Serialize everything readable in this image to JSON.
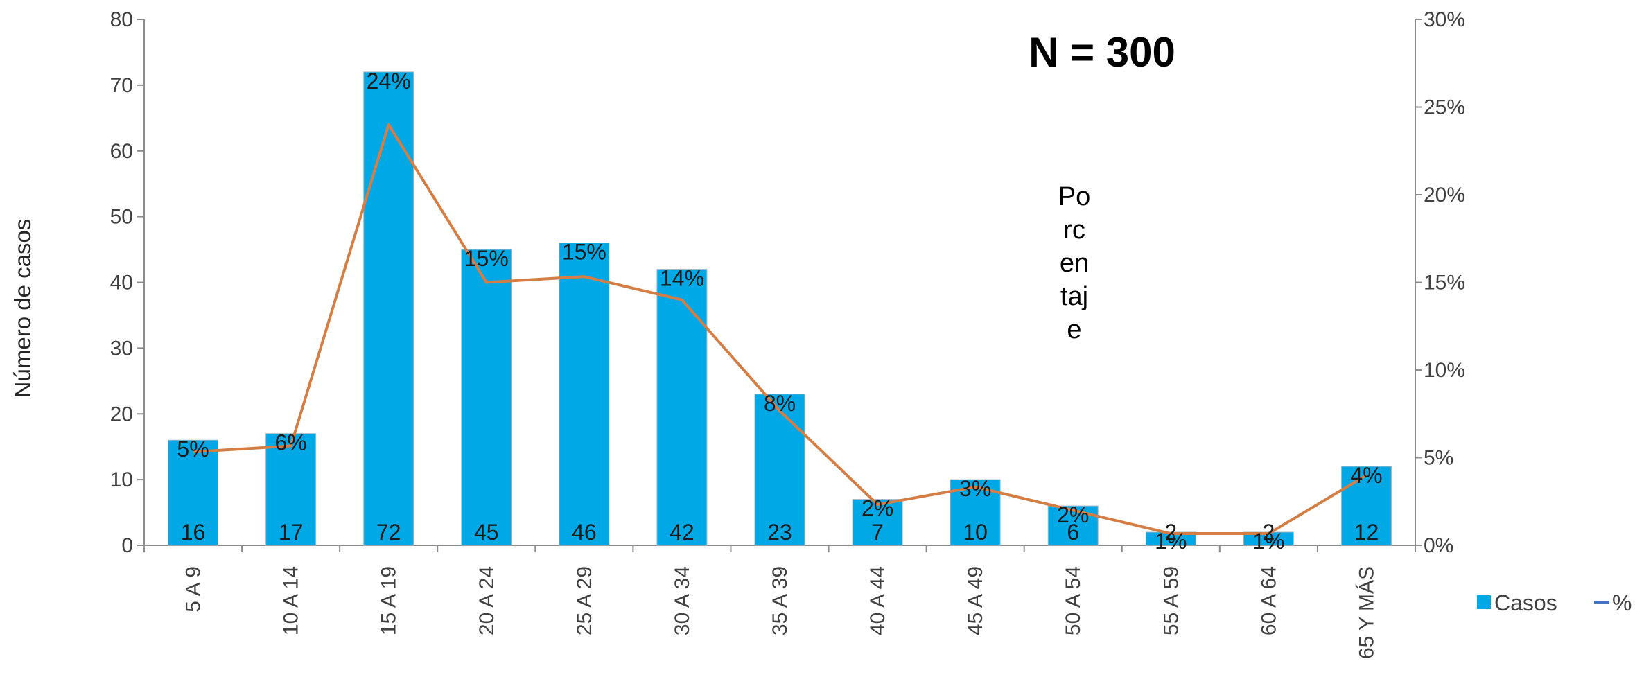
{
  "chart_data": {
    "type": "bar",
    "categories": [
      "5 A 9",
      "10 A 14",
      "15 A 19",
      "20 A 24",
      "25 A 29",
      "30 A 34",
      "35 A 39",
      "40 A 44",
      "45 A 49",
      "50 A 54",
      "55 A 59",
      "60 A 64",
      "65 Y MÁS"
    ],
    "series": [
      {
        "name": "Casos",
        "type": "bar",
        "axis": "left",
        "color": "#00A9E6",
        "values": [
          16,
          17,
          72,
          45,
          46,
          42,
          23,
          7,
          10,
          6,
          2,
          2,
          12
        ]
      },
      {
        "name": "%",
        "type": "line",
        "axis": "right",
        "color": "#D47E45",
        "values": [
          0.0533,
          0.0567,
          0.24,
          0.15,
          0.1533,
          0.14,
          0.0767,
          0.0233,
          0.0333,
          0.02,
          0.0067,
          0.0067,
          0.04
        ],
        "labels": [
          "5%",
          "6%",
          "24%",
          "15%",
          "15%",
          "14%",
          "8%",
          "2%",
          "3%",
          "2%",
          "1%",
          "1%",
          "4%"
        ]
      }
    ],
    "title": "",
    "annotation": "N = 300",
    "ylabel": "Número de casos",
    "y2label_lines": [
      "Po",
      "rc",
      "en",
      "taj",
      "e"
    ],
    "ylim": [
      0,
      80
    ],
    "yticks": [
      "0",
      "10",
      "20",
      "30",
      "40",
      "50",
      "60",
      "70",
      "80"
    ],
    "y2lim": [
      0,
      0.3
    ],
    "y2ticks": [
      "0%",
      "5%",
      "10%",
      "15%",
      "20%",
      "25%",
      "30%"
    ],
    "legend": {
      "position": "right",
      "items": [
        "Casos",
        "%"
      ]
    },
    "grid": false
  }
}
